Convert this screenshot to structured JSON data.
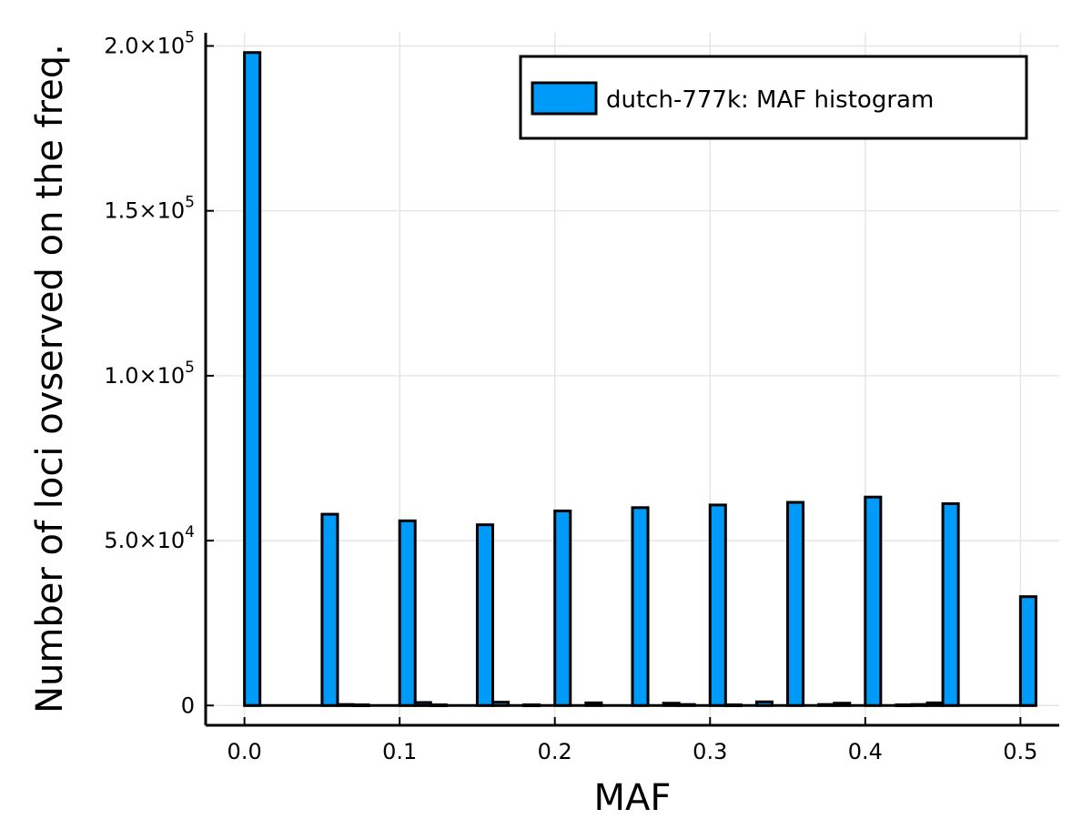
{
  "chart_data": {
    "type": "bar",
    "xlabel": "MAF",
    "ylabel": "Number of loci ovserved on the freq.",
    "xlim": [
      -0.025,
      0.525
    ],
    "ylim": [
      -6000,
      204000
    ],
    "grid": true,
    "legend_position": "top-right",
    "colors": {
      "bar": "#009af9",
      "edge": "#000000"
    },
    "x_ticks": [
      {
        "value": 0.0,
        "label": "0.0"
      },
      {
        "value": 0.1,
        "label": "0.1"
      },
      {
        "value": 0.2,
        "label": "0.2"
      },
      {
        "value": 0.3,
        "label": "0.3"
      },
      {
        "value": 0.4,
        "label": "0.4"
      },
      {
        "value": 0.5,
        "label": "0.5"
      }
    ],
    "y_ticks": [
      {
        "value": 0,
        "mantissa": "0",
        "exponent": ""
      },
      {
        "value": 50000,
        "mantissa": "5.0×10",
        "exponent": "4"
      },
      {
        "value": 100000,
        "mantissa": "1.0×10",
        "exponent": "5"
      },
      {
        "value": 150000,
        "mantissa": "1.5×10",
        "exponent": "5"
      },
      {
        "value": 200000,
        "mantissa": "2.0×10",
        "exponent": "5"
      }
    ],
    "series": [
      {
        "name": "dutch-777k: MAF histogram",
        "bin_width": 0.01,
        "bins": [
          {
            "x0": 0.0,
            "x1": 0.01,
            "value": 198000
          },
          {
            "x0": 0.05,
            "x1": 0.06,
            "value": 58000
          },
          {
            "x0": 0.06,
            "x1": 0.07,
            "value": 300
          },
          {
            "x0": 0.07,
            "x1": 0.08,
            "value": 200
          },
          {
            "x0": 0.1,
            "x1": 0.11,
            "value": 56000
          },
          {
            "x0": 0.11,
            "x1": 0.12,
            "value": 900
          },
          {
            "x0": 0.12,
            "x1": 0.13,
            "value": 200
          },
          {
            "x0": 0.15,
            "x1": 0.16,
            "value": 54800
          },
          {
            "x0": 0.16,
            "x1": 0.17,
            "value": 1000
          },
          {
            "x0": 0.18,
            "x1": 0.19,
            "value": 200
          },
          {
            "x0": 0.2,
            "x1": 0.21,
            "value": 59000
          },
          {
            "x0": 0.22,
            "x1": 0.23,
            "value": 800
          },
          {
            "x0": 0.25,
            "x1": 0.26,
            "value": 60000
          },
          {
            "x0": 0.27,
            "x1": 0.28,
            "value": 700
          },
          {
            "x0": 0.28,
            "x1": 0.29,
            "value": 300
          },
          {
            "x0": 0.3,
            "x1": 0.31,
            "value": 60800
          },
          {
            "x0": 0.31,
            "x1": 0.32,
            "value": 200
          },
          {
            "x0": 0.33,
            "x1": 0.34,
            "value": 1100
          },
          {
            "x0": 0.35,
            "x1": 0.36,
            "value": 61600
          },
          {
            "x0": 0.37,
            "x1": 0.38,
            "value": 300
          },
          {
            "x0": 0.38,
            "x1": 0.39,
            "value": 700
          },
          {
            "x0": 0.4,
            "x1": 0.41,
            "value": 63200
          },
          {
            "x0": 0.42,
            "x1": 0.43,
            "value": 200
          },
          {
            "x0": 0.43,
            "x1": 0.44,
            "value": 300
          },
          {
            "x0": 0.44,
            "x1": 0.45,
            "value": 800
          },
          {
            "x0": 0.45,
            "x1": 0.46,
            "value": 61200
          },
          {
            "x0": 0.5,
            "x1": 0.51,
            "value": 33000
          }
        ]
      }
    ]
  }
}
